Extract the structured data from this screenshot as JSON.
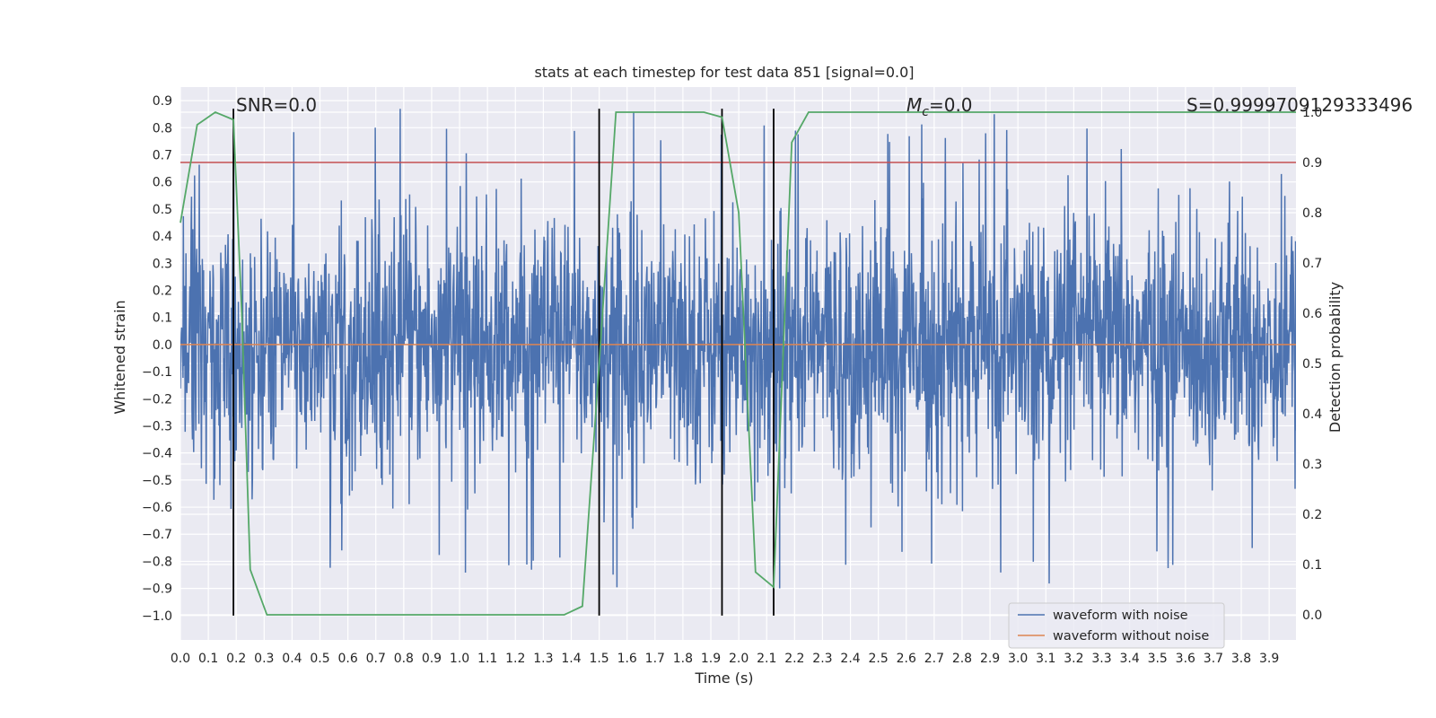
{
  "chart_data": {
    "type": "line",
    "title": "stats at each timestep for test data 851 [signal=0.0]",
    "xlabel": "Time (s)",
    "ylabel": "Whitened strain",
    "y2label": "Detection probability",
    "xlim": [
      0.0,
      3.996
    ],
    "ylim": [
      -1.09,
      0.95
    ],
    "y2lim": [
      -0.05,
      1.05
    ],
    "xticks": [
      "0.0",
      "0.1",
      "0.2",
      "0.3",
      "0.4",
      "0.5",
      "0.6",
      "0.7",
      "0.8",
      "0.9",
      "1.0",
      "1.1",
      "1.2",
      "1.3",
      "1.4",
      "1.5",
      "1.6",
      "1.7",
      "1.8",
      "1.9",
      "2.0",
      "2.1",
      "2.2",
      "2.3",
      "2.4",
      "2.5",
      "2.6",
      "2.7",
      "2.8",
      "2.9",
      "3.0",
      "3.1",
      "3.2",
      "3.3",
      "3.4",
      "3.5",
      "3.6",
      "3.7",
      "3.8",
      "3.9"
    ],
    "yticks": [
      "0.9",
      "0.8",
      "0.7",
      "0.6",
      "0.5",
      "0.4",
      "0.3",
      "0.2",
      "0.1",
      "0.0",
      "−0.1",
      "−0.2",
      "−0.3",
      "−0.4",
      "−0.5",
      "−0.6",
      "−0.7",
      "−0.8",
      "−0.9",
      "−1.0"
    ],
    "y2ticks": [
      "0.0",
      "0.1",
      "0.2",
      "0.3",
      "0.4",
      "0.5",
      "0.6",
      "0.7",
      "0.8",
      "0.9",
      "1.0"
    ],
    "grid": true,
    "legend_position": "lower-right",
    "annotations": {
      "snr": "SNR=0.0",
      "mc_symbol": "M",
      "mc_subscript": "c",
      "mc_value": "=0.0",
      "score": "S=0.9999709129333496"
    },
    "threshold": {
      "value": 0.9,
      "axis": "y2",
      "color": "#c44e52"
    },
    "vlines": {
      "x": [
        0.19,
        1.5,
        1.94,
        2.125
      ],
      "ymin": -1.0,
      "ymax": 0.87,
      "color": "#000000"
    },
    "series": [
      {
        "name": "waveform with noise",
        "color": "#4c72b0",
        "axis": "y",
        "samples": 8192,
        "amplitude": "noise, approx. ±0.9"
      },
      {
        "name": "waveform without noise",
        "color": "#dd8452",
        "axis": "y",
        "constant": 0.0
      },
      {
        "name": "detection probability",
        "color": "#55a868",
        "axis": "y2",
        "x": [
          0.0,
          0.06,
          0.125,
          0.19,
          0.22,
          0.25,
          0.31,
          0.375,
          0.5,
          0.75,
          1.0,
          1.25,
          1.375,
          1.44,
          1.5,
          1.56,
          1.625,
          1.75,
          1.875,
          1.94,
          2.0,
          2.06,
          2.125,
          2.19,
          2.25,
          2.5,
          3.0,
          3.5,
          3.996
        ],
        "y": [
          0.78,
          0.975,
          1.0,
          0.985,
          0.6,
          0.09,
          0.0,
          0.0,
          0.0,
          0.0,
          0.0,
          0.0,
          0.0,
          0.017,
          0.5,
          1.0,
          1.0,
          1.0,
          1.0,
          0.99,
          0.8,
          0.085,
          0.055,
          0.94,
          1.0,
          1.0,
          1.0,
          1.0,
          1.0
        ]
      }
    ]
  }
}
